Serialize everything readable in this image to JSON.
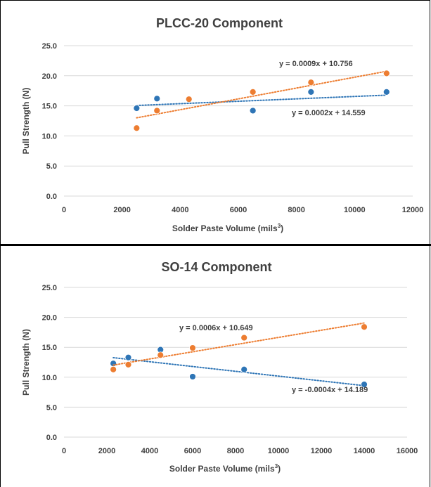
{
  "chart_data": [
    {
      "type": "scatter",
      "title": "PLCC-20 Component",
      "xlabel": "Solder Paste Volume (mils",
      "xlabel_sup": "3",
      "xlabel_end": ")",
      "ylabel": "Pull Strength (N)",
      "xlim": [
        0,
        12000
      ],
      "ylim": [
        0,
        25
      ],
      "xticks": [
        0,
        2000,
        4000,
        6000,
        8000,
        10000,
        12000
      ],
      "yticks": [
        0,
        5,
        10,
        15,
        20,
        25
      ],
      "ytick_labels": [
        "0.0",
        "5.0",
        "10.0",
        "15.0",
        "20.0",
        "25.0"
      ],
      "grid": true,
      "series": [
        {
          "color": "#2e75b6",
          "points": [
            [
              2500,
              14.6
            ],
            [
              3200,
              16.2
            ],
            [
              4300,
              16.1
            ],
            [
              6500,
              14.2
            ],
            [
              8500,
              17.3
            ],
            [
              11100,
              17.3
            ]
          ],
          "trendline": {
            "slope": 0.0002,
            "intercept": 14.559,
            "x_range": [
              2500,
              11100
            ]
          },
          "equation": "y = 0.0002x + 14.559"
        },
        {
          "color": "#ed7d31",
          "points": [
            [
              2500,
              11.3
            ],
            [
              3200,
              14.2
            ],
            [
              4300,
              16.1
            ],
            [
              6500,
              17.3
            ],
            [
              8500,
              18.9
            ],
            [
              11100,
              20.4
            ]
          ],
          "trendline": {
            "slope": 0.0009,
            "intercept": 10.756,
            "x_range": [
              2500,
              11100
            ]
          },
          "equation": "y = 0.0009x + 10.756"
        }
      ]
    },
    {
      "type": "scatter",
      "title": "SO-14 Component",
      "xlabel": "Solder Paste Volume (mils",
      "xlabel_sup": "3",
      "xlabel_end": ")",
      "ylabel": "Pull Strength (N)",
      "xlim": [
        0,
        16000
      ],
      "ylim": [
        0,
        25
      ],
      "xticks": [
        0,
        2000,
        4000,
        6000,
        8000,
        10000,
        12000,
        14000,
        16000
      ],
      "yticks": [
        0,
        5,
        10,
        15,
        20,
        25
      ],
      "ytick_labels": [
        "0.0",
        "5.0",
        "10.0",
        "15.0",
        "20.0",
        "25.0"
      ],
      "grid": true,
      "series": [
        {
          "color": "#2e75b6",
          "points": [
            [
              2300,
              12.3
            ],
            [
              3000,
              13.3
            ],
            [
              4500,
              14.6
            ],
            [
              6000,
              10.1
            ],
            [
              8400,
              11.3
            ],
            [
              14000,
              8.8
            ]
          ],
          "trendline": {
            "slope": -0.0004,
            "intercept": 14.189,
            "x_range": [
              2300,
              14000
            ]
          },
          "equation": "y = -0.0004x + 14.189"
        },
        {
          "color": "#ed7d31",
          "points": [
            [
              2300,
              11.3
            ],
            [
              3000,
              12.1
            ],
            [
              4500,
              13.7
            ],
            [
              6000,
              14.9
            ],
            [
              8400,
              16.6
            ],
            [
              14000,
              18.4
            ]
          ],
          "trendline": {
            "slope": 0.0006,
            "intercept": 10.649,
            "x_range": [
              2300,
              14000
            ]
          },
          "equation": "y = 0.0006x + 10.649"
        }
      ]
    }
  ]
}
